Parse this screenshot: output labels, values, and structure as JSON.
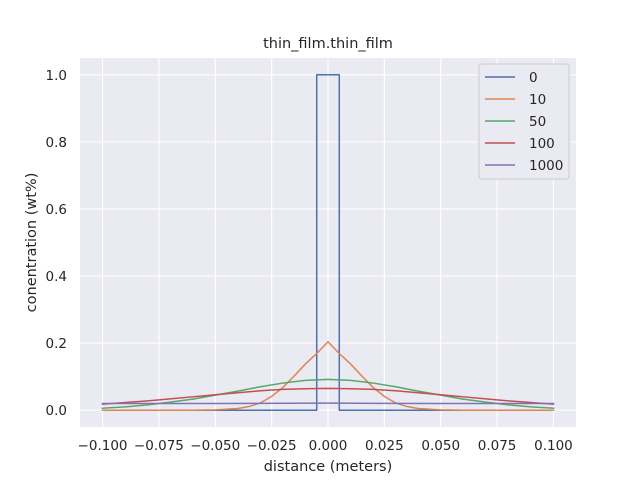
{
  "chart_data": {
    "type": "line",
    "title": "thin_film.thin_film",
    "xlabel": "distance (meters)",
    "ylabel": "conentration (wt%)",
    "xlim": [
      -0.11,
      0.11
    ],
    "ylim": [
      -0.05,
      1.05
    ],
    "xticks": [
      -0.1,
      -0.075,
      -0.05,
      -0.025,
      0.0,
      0.025,
      0.05,
      0.075,
      0.1
    ],
    "xtick_labels": [
      "−0.100",
      "−0.075",
      "−0.050",
      "−0.025",
      "0.000",
      "0.025",
      "0.050",
      "0.075",
      "0.100"
    ],
    "yticks": [
      0.0,
      0.2,
      0.4,
      0.6,
      0.8,
      1.0
    ],
    "ytick_labels": [
      "0.0",
      "0.2",
      "0.4",
      "0.6",
      "0.8",
      "1.0"
    ],
    "grid": true,
    "legend_position": "top-right",
    "series": [
      {
        "name": "0",
        "color": "#4c72b0",
        "x": [
          -0.1,
          -0.005,
          -0.005,
          0.005,
          0.005,
          0.1
        ],
        "y": [
          0.0,
          0.0,
          1.0,
          1.0,
          0.0,
          0.0
        ]
      },
      {
        "name": "10",
        "color": "#dd8452",
        "x": [
          -0.1,
          -0.08,
          -0.06,
          -0.05,
          -0.04,
          -0.035,
          -0.03,
          -0.025,
          -0.02,
          -0.015,
          -0.01,
          -0.005,
          0.0,
          0.005,
          0.01,
          0.015,
          0.02,
          0.025,
          0.03,
          0.035,
          0.04,
          0.05,
          0.06,
          0.08,
          0.1
        ],
        "y": [
          0.0,
          0.0,
          0.0,
          0.001,
          0.005,
          0.011,
          0.022,
          0.041,
          0.068,
          0.102,
          0.138,
          0.169,
          0.204,
          0.169,
          0.138,
          0.102,
          0.068,
          0.041,
          0.022,
          0.011,
          0.005,
          0.001,
          0.0,
          0.0,
          0.0
        ]
      },
      {
        "name": "50",
        "color": "#55a868",
        "x": [
          -0.1,
          -0.09,
          -0.08,
          -0.07,
          -0.06,
          -0.05,
          -0.04,
          -0.03,
          -0.02,
          -0.01,
          0.0,
          0.01,
          0.02,
          0.03,
          0.04,
          0.05,
          0.06,
          0.07,
          0.08,
          0.09,
          0.1
        ],
        "y": [
          0.006,
          0.01,
          0.016,
          0.024,
          0.033,
          0.045,
          0.057,
          0.07,
          0.081,
          0.089,
          0.092,
          0.089,
          0.081,
          0.07,
          0.057,
          0.045,
          0.033,
          0.024,
          0.016,
          0.01,
          0.006
        ]
      },
      {
        "name": "100",
        "color": "#c44e52",
        "x": [
          -0.1,
          -0.09,
          -0.08,
          -0.07,
          -0.06,
          -0.05,
          -0.04,
          -0.03,
          -0.02,
          -0.01,
          0.0,
          0.01,
          0.02,
          0.03,
          0.04,
          0.05,
          0.06,
          0.07,
          0.08,
          0.09,
          0.1
        ],
        "y": [
          0.018,
          0.023,
          0.028,
          0.034,
          0.04,
          0.046,
          0.052,
          0.058,
          0.062,
          0.064,
          0.065,
          0.064,
          0.062,
          0.058,
          0.052,
          0.046,
          0.04,
          0.034,
          0.028,
          0.023,
          0.018
        ]
      },
      {
        "name": "1000",
        "color": "#8172b3",
        "x": [
          -0.1,
          -0.05,
          0.0,
          0.05,
          0.1
        ],
        "y": [
          0.02,
          0.02,
          0.021,
          0.02,
          0.02
        ]
      }
    ]
  }
}
